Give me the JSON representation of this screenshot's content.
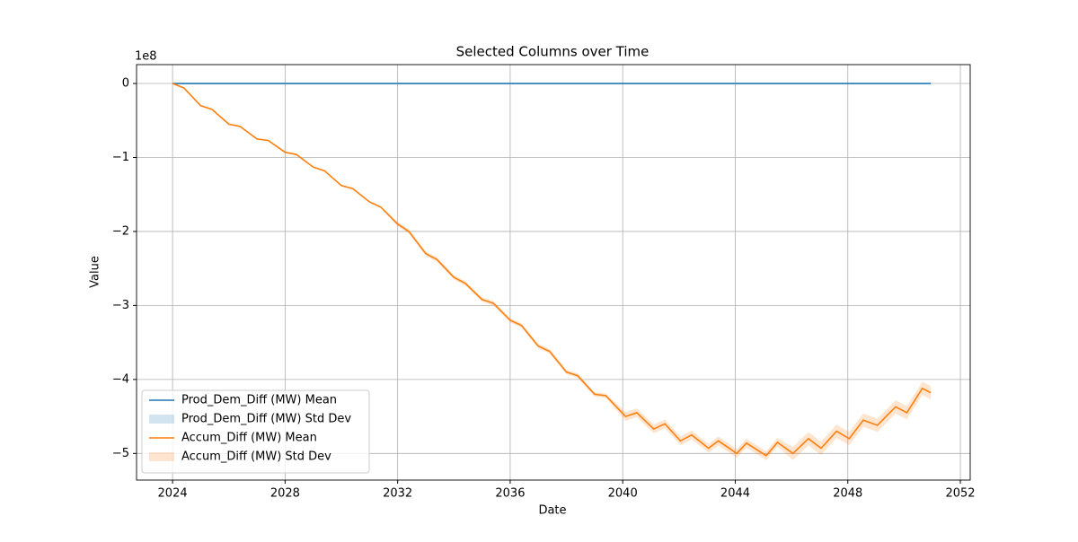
{
  "chart_data": {
    "type": "line",
    "title": "Selected Columns over Time",
    "x_label": "Date",
    "y_label": "Value",
    "y_offset_label": "1e8",
    "x": [
      2024.0,
      2024.4,
      2025.0,
      2025.4,
      2026.0,
      2026.4,
      2027.0,
      2027.4,
      2028.0,
      2028.4,
      2029.0,
      2029.4,
      2030.0,
      2030.4,
      2031.0,
      2031.4,
      2032.0,
      2032.4,
      2033.0,
      2033.4,
      2034.0,
      2034.4,
      2035.0,
      2035.4,
      2036.0,
      2036.4,
      2037.0,
      2037.4,
      2038.0,
      2038.4,
      2039.0,
      2039.4,
      2040.1,
      2040.5,
      2041.1,
      2041.5,
      2042.05,
      2042.45,
      2043.05,
      2043.4,
      2044.05,
      2044.4,
      2045.1,
      2045.5,
      2046.05,
      2046.6,
      2047.05,
      2047.6,
      2048.05,
      2048.55,
      2049.05,
      2049.7,
      2050.1,
      2050.65,
      2050.95
    ],
    "series": [
      {
        "name": "Prod_Dem_Diff (MW) Mean",
        "std_name": "Prod_Dem_Diff (MW) Std Dev",
        "color": "#1f77b4",
        "values": [
          0,
          0,
          0,
          0,
          0,
          0,
          0,
          0,
          0,
          0,
          0,
          0,
          0,
          0,
          0,
          0,
          0,
          0,
          0,
          0,
          0,
          0,
          0,
          0,
          0,
          0,
          0,
          0,
          0,
          0,
          0,
          0,
          0,
          0,
          0,
          0,
          0,
          0,
          0,
          0,
          0,
          0,
          0,
          0,
          0,
          0,
          0,
          0,
          0,
          0,
          0,
          0,
          0,
          0,
          0
        ],
        "std": [
          0,
          0,
          0,
          0,
          0,
          0,
          0,
          0,
          0,
          0,
          0,
          0,
          0,
          0,
          0,
          0,
          0,
          0,
          0,
          0,
          0,
          0,
          0,
          0,
          0,
          0,
          0,
          0,
          0,
          0,
          0,
          0,
          0,
          0,
          0,
          0,
          0,
          0,
          0,
          0,
          0,
          0,
          0,
          0,
          0,
          0,
          0,
          0,
          0,
          0,
          0,
          0,
          0,
          0,
          0
        ]
      },
      {
        "name": "Accum_Diff (MW) Mean",
        "std_name": "Accum_Diff (MW) Std Dev",
        "color": "#ff7f0e",
        "values": [
          0,
          -0.06,
          -0.3,
          -0.35,
          -0.55,
          -0.58,
          -0.75,
          -0.77,
          -0.93,
          -0.96,
          -1.13,
          -1.18,
          -1.38,
          -1.42,
          -1.6,
          -1.67,
          -1.9,
          -2.0,
          -2.3,
          -2.38,
          -2.62,
          -2.7,
          -2.92,
          -2.97,
          -3.2,
          -3.27,
          -3.55,
          -3.62,
          -3.9,
          -3.95,
          -4.2,
          -4.22,
          -4.5,
          -4.45,
          -4.67,
          -4.6,
          -4.83,
          -4.75,
          -4.93,
          -4.83,
          -5.0,
          -4.86,
          -5.03,
          -4.85,
          -5.0,
          -4.8,
          -4.93,
          -4.7,
          -4.8,
          -4.55,
          -4.62,
          -4.37,
          -4.45,
          -4.12,
          -4.18
        ],
        "std": [
          0.01,
          0.01,
          0.01,
          0.01,
          0.01,
          0.01,
          0.01,
          0.01,
          0.01,
          0.01,
          0.01,
          0.01,
          0.01,
          0.01,
          0.01,
          0.01,
          0.03,
          0.03,
          0.03,
          0.03,
          0.03,
          0.03,
          0.03,
          0.03,
          0.03,
          0.03,
          0.03,
          0.03,
          0.03,
          0.03,
          0.03,
          0.03,
          0.06,
          0.06,
          0.06,
          0.06,
          0.06,
          0.06,
          0.06,
          0.06,
          0.06,
          0.06,
          0.06,
          0.06,
          0.09,
          0.09,
          0.09,
          0.09,
          0.09,
          0.09,
          0.09,
          0.09,
          0.09,
          0.09,
          0.09
        ]
      }
    ],
    "xlim": [
      2022.72,
      2052.35
    ],
    "xticks": [
      2024,
      2028,
      2032,
      2036,
      2040,
      2044,
      2048,
      2052
    ],
    "ylim": [
      -5.36,
      0.255
    ],
    "yticks": [
      {
        "value": -5,
        "label": "−5"
      },
      {
        "value": -4,
        "label": "−4"
      },
      {
        "value": -3,
        "label": "−3"
      },
      {
        "value": -2,
        "label": "−2"
      },
      {
        "value": -1,
        "label": "−1"
      },
      0
    ],
    "grid": true,
    "legend": "lower left"
  }
}
